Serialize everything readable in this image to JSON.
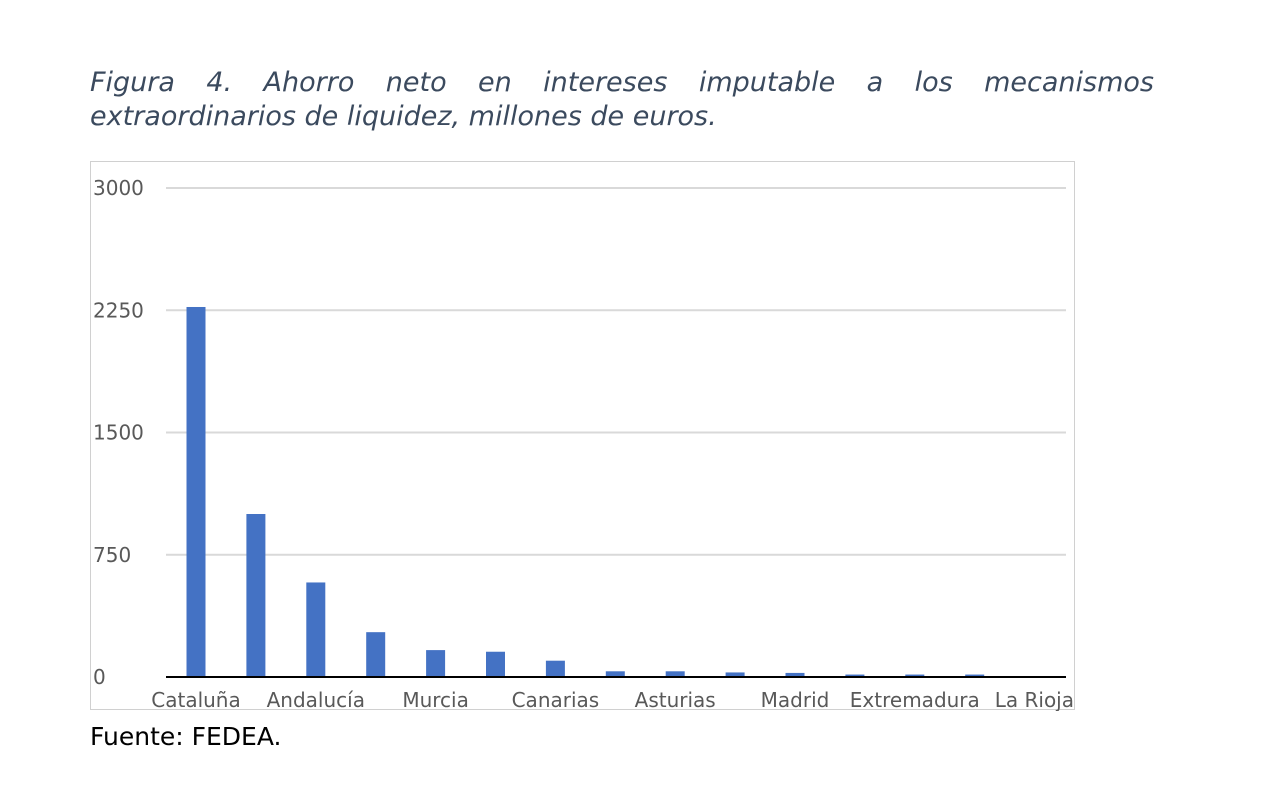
{
  "figure": {
    "title": "Figura 4. Ahorro neto en intereses imputable a los mecanismos extraordinarios de liquidez, millones de euros.",
    "source": "Fuente: FEDEA."
  },
  "colors": {
    "bar": "#4472c4",
    "grid": "#d9d9d9",
    "axis": "#000000",
    "text": "#595959"
  },
  "chart_data": {
    "type": "bar",
    "categories": [
      "Cataluña",
      "",
      "Andalucía",
      "",
      "Murcia",
      "",
      "Canarias",
      "",
      "Asturias",
      "",
      "Madrid",
      "",
      "Extremadura",
      "",
      "La Rioja"
    ],
    "values": [
      2270,
      1000,
      580,
      275,
      165,
      155,
      100,
      35,
      35,
      28,
      25,
      15,
      15,
      15,
      0
    ],
    "xlabel": "",
    "ylabel": "",
    "ylim": [
      0,
      3000
    ],
    "yticks": [
      0,
      750,
      1500,
      2250,
      3000
    ],
    "grid": true,
    "legend": "none"
  }
}
